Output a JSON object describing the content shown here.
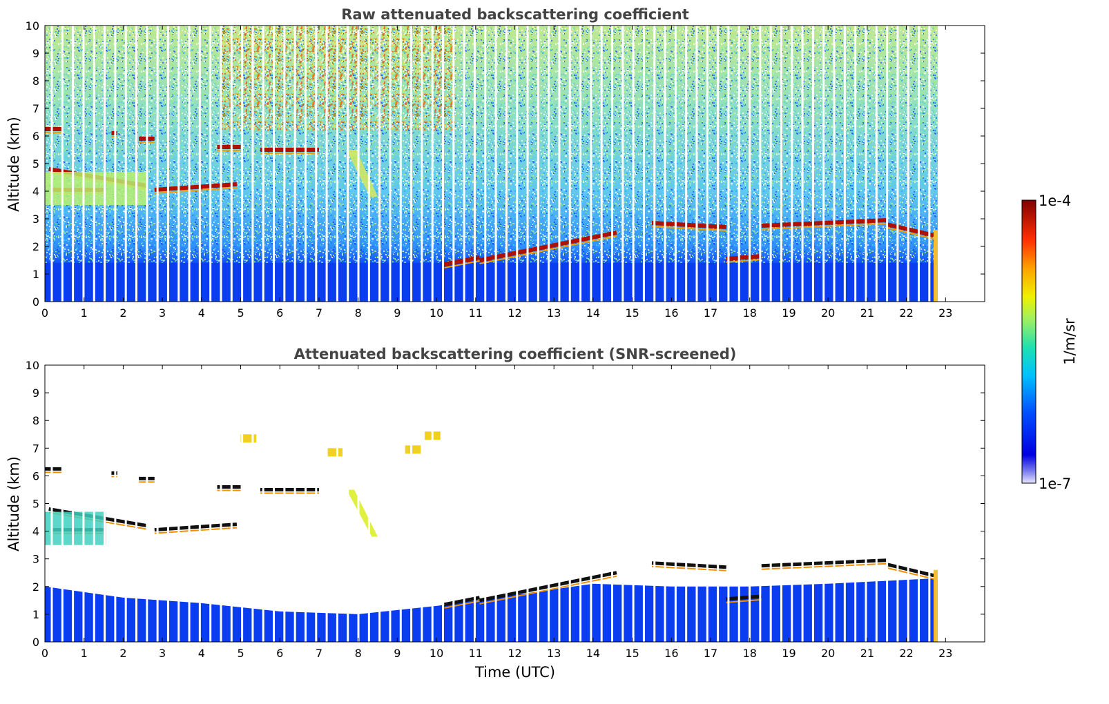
{
  "chart_data": [
    {
      "type": "heatmap",
      "title": "Raw attenuated backscattering coefficient",
      "xlabel": "",
      "ylabel": "Altitude (km)",
      "xlim": [
        0,
        24
      ],
      "ylim": [
        0,
        10
      ],
      "x_ticks": [
        "0",
        "1",
        "2",
        "3",
        "4",
        "5",
        "6",
        "7",
        "8",
        "9",
        "10",
        "11",
        "12",
        "13",
        "14",
        "15",
        "16",
        "17",
        "18",
        "19",
        "20",
        "21",
        "22",
        "23"
      ],
      "y_ticks": [
        "0",
        "1",
        "2",
        "3",
        "4",
        "5",
        "6",
        "7",
        "8",
        "9",
        "10"
      ],
      "data_end_time": 22.8,
      "boundary_layer_top_km": 1.4,
      "features": [
        {
          "kind": "cloud",
          "t0": 0.0,
          "t1": 0.45,
          "alt": 6.25
        },
        {
          "kind": "cloud",
          "t0": 1.7,
          "t1": 1.85,
          "alt": 6.1
        },
        {
          "kind": "cloud",
          "t0": 2.4,
          "t1": 2.8,
          "alt": 5.9
        },
        {
          "kind": "cloud",
          "t0": 4.4,
          "t1": 5.0,
          "alt": 5.6
        },
        {
          "kind": "cloud",
          "t0": 5.5,
          "t1": 7.0,
          "alt": 5.5
        },
        {
          "kind": "cloud",
          "t0": 0.1,
          "t1": 2.6,
          "alt": 4.8,
          "alt_end": 4.2
        },
        {
          "kind": "cloud",
          "t0": 0.2,
          "t1": 1.5,
          "alt": 4.05
        },
        {
          "kind": "cloud",
          "t0": 2.8,
          "t1": 4.9,
          "alt": 4.05,
          "alt_end": 4.25
        },
        {
          "kind": "aerosol",
          "t0": 0.0,
          "t1": 2.6,
          "alt0": 3.5,
          "alt1": 4.7
        },
        {
          "kind": "cloud",
          "t0": 10.2,
          "t1": 11.1,
          "alt": 1.35,
          "alt_end": 1.6
        },
        {
          "kind": "cloud",
          "t0": 11.1,
          "t1": 14.6,
          "alt": 1.5,
          "alt_end": 2.5
        },
        {
          "kind": "cloud",
          "t0": 15.5,
          "t1": 17.4,
          "alt": 2.85,
          "alt_end": 2.7
        },
        {
          "kind": "cloud",
          "t0": 17.4,
          "t1": 18.3,
          "alt": 1.55,
          "alt_end": 1.65
        },
        {
          "kind": "cloud",
          "t0": 18.3,
          "t1": 21.5,
          "alt": 2.75,
          "alt_end": 2.95
        },
        {
          "kind": "cloud",
          "t0": 21.5,
          "t1": 22.7,
          "alt": 2.8,
          "alt_end": 2.4
        },
        {
          "kind": "plume",
          "t0": 7.7,
          "t1": 8.5,
          "alt": 5.5,
          "alt_end": 3.8
        },
        {
          "kind": "upper-noise",
          "t0": 4.5,
          "t1": 10.5,
          "alt0": 6.2,
          "alt1": 10.0
        }
      ]
    },
    {
      "type": "heatmap",
      "title": "Attenuated backscattering coefficient (SNR-screened)",
      "xlabel": "Time (UTC)",
      "ylabel": "Altitude (km)",
      "xlim": [
        0,
        24
      ],
      "ylim": [
        0,
        10
      ],
      "x_ticks": [
        "0",
        "1",
        "2",
        "3",
        "4",
        "5",
        "6",
        "7",
        "8",
        "9",
        "10",
        "11",
        "12",
        "13",
        "14",
        "15",
        "16",
        "17",
        "18",
        "19",
        "20",
        "21",
        "22",
        "23"
      ],
      "y_ticks": [
        "0",
        "1",
        "2",
        "3",
        "4",
        "5",
        "6",
        "7",
        "8",
        "9",
        "10"
      ],
      "data_end_time": 22.8,
      "boundary_layer_top_km": [
        [
          0,
          2.0
        ],
        [
          2,
          1.6
        ],
        [
          4,
          1.4
        ],
        [
          6,
          1.1
        ],
        [
          8,
          1.0
        ],
        [
          10,
          1.3
        ],
        [
          12,
          1.7
        ],
        [
          14,
          2.1
        ],
        [
          16,
          2.0
        ],
        [
          18,
          2.0
        ],
        [
          20,
          2.1
        ],
        [
          22.8,
          2.3
        ]
      ]
    }
  ],
  "colorbar": {
    "label": "1/m/sr",
    "max_label": "1e-4",
    "min_label": "1e-7",
    "scale": "log",
    "range": [
      1e-07,
      0.0001
    ],
    "colormap": "jet"
  }
}
